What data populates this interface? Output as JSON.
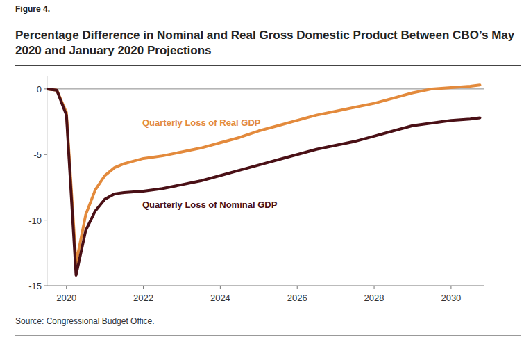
{
  "chart_data": {
    "type": "line",
    "figure_label": "Figure 4.",
    "title": "Percentage Difference in Nominal and Real Gross Domestic Product Between CBO’s May 2020 and January 2020 Projections",
    "source": "Source: Congressional Budget Office.",
    "x": [
      2019.5,
      2019.75,
      2020,
      2020.25,
      2020.5,
      2020.75,
      2021,
      2021.25,
      2021.5,
      2021.75,
      2022,
      2022.5,
      2023,
      2023.5,
      2024,
      2024.5,
      2025,
      2025.5,
      2026,
      2026.5,
      2027,
      2027.5,
      2028,
      2028.5,
      2029,
      2029.5,
      2030,
      2030.5,
      2030.75
    ],
    "series": [
      {
        "name": "Quarterly Loss of Real GDP",
        "color": "#e38a3c",
        "values": [
          0,
          -0.1,
          -1.8,
          -13.3,
          -9.6,
          -7.7,
          -6.6,
          -6.0,
          -5.7,
          -5.5,
          -5.3,
          -5.1,
          -4.8,
          -4.5,
          -4.1,
          -3.7,
          -3.2,
          -2.8,
          -2.4,
          -2.0,
          -1.7,
          -1.4,
          -1.1,
          -0.7,
          -0.3,
          0.0,
          0.1,
          0.2,
          0.3
        ]
      },
      {
        "name": "Quarterly Loss of Nominal GDP",
        "color": "#4a1016",
        "values": [
          0,
          -0.1,
          -2.0,
          -14.2,
          -10.8,
          -9.3,
          -8.4,
          -8.0,
          -7.9,
          -7.85,
          -7.8,
          -7.6,
          -7.3,
          -7.0,
          -6.6,
          -6.2,
          -5.8,
          -5.4,
          -5.0,
          -4.6,
          -4.3,
          -4.0,
          -3.6,
          -3.2,
          -2.8,
          -2.6,
          -2.4,
          -2.3,
          -2.2
        ]
      }
    ],
    "xlim": [
      2019.5,
      2030.85
    ],
    "xticks": [
      2020,
      2022,
      2024,
      2026,
      2028,
      2030
    ],
    "ylim": [
      -15,
      1
    ],
    "yticks": [
      0,
      -5,
      -10,
      -15
    ],
    "grid": false
  }
}
